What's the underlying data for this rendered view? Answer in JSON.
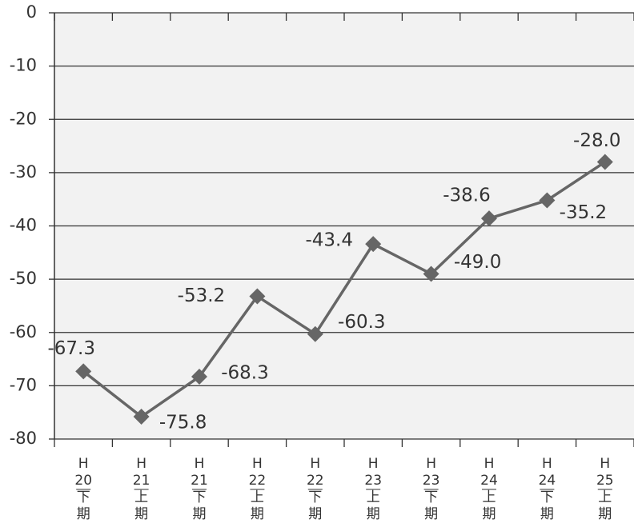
{
  "chart_data": {
    "type": "line",
    "categories": [
      [
        "H",
        "20",
        "下",
        "期"
      ],
      [
        "H",
        "21",
        "上",
        "期"
      ],
      [
        "H",
        "21",
        "下",
        "期"
      ],
      [
        "H",
        "22",
        "上",
        "期"
      ],
      [
        "H",
        "22",
        "下",
        "期"
      ],
      [
        "H",
        "23",
        "上",
        "期"
      ],
      [
        "H",
        "23",
        "下",
        "期"
      ],
      [
        "H",
        "24",
        "上",
        "期"
      ],
      [
        "H",
        "24",
        "下",
        "期"
      ],
      [
        "H",
        "25",
        "上",
        "期"
      ]
    ],
    "series": [
      {
        "color": "#666666",
        "values": [
          -67.3,
          -75.8,
          -68.3,
          -53.2,
          -60.3,
          -43.4,
          -49.0,
          -38.6,
          -35.2,
          -28.0
        ],
        "value_labels": [
          "-67.3",
          "-75.8",
          "-68.3",
          "-53.2",
          "-60.3",
          "-43.4",
          "-49.0",
          "-38.6",
          "-35.2",
          "-28.0"
        ]
      }
    ],
    "ylim": [
      -80,
      0
    ],
    "yticks": [
      0,
      -10,
      -20,
      -30,
      -40,
      -50,
      -60,
      -70,
      -80
    ],
    "grid": true
  }
}
